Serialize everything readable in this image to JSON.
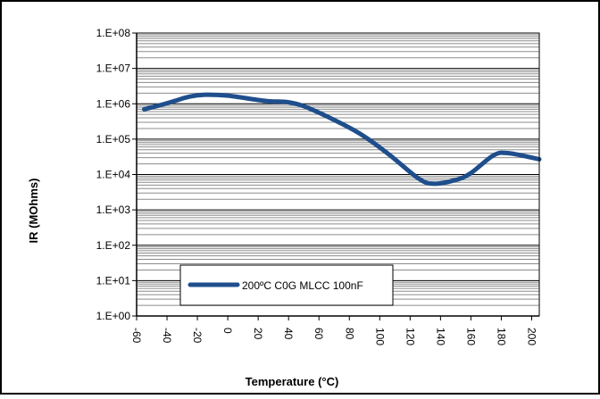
{
  "chart_data": {
    "type": "line",
    "title": "",
    "xlabel": "Temperature (°C)",
    "ylabel": "IR (MOhms)",
    "y_scale": "log",
    "xlim": [
      -60,
      205
    ],
    "ylim": [
      1,
      100000000
    ],
    "grid": true,
    "legend_position": "lower-left",
    "x_ticks": [
      -60,
      -40,
      -20,
      0,
      20,
      40,
      60,
      80,
      100,
      120,
      140,
      160,
      180,
      200
    ],
    "x_tick_labels": [
      "-60",
      "-40",
      "-20",
      "0",
      "20",
      "40",
      "60",
      "80",
      "100",
      "120",
      "140",
      "160",
      "180",
      "200"
    ],
    "y_ticks": [
      1,
      10,
      100,
      1000,
      10000,
      100000,
      1000000,
      10000000,
      100000000
    ],
    "y_tick_labels": [
      "1.E+00",
      "1.E+01",
      "1.E+02",
      "1.E+03",
      "1.E+04",
      "1.E+05",
      "1.E+06",
      "1.E+07",
      "1.E+08"
    ],
    "series": [
      {
        "name": "200ºC C0G MLCC 100nF",
        "color": "#1f4e8c",
        "x": [
          -55,
          -45,
          -35,
          -25,
          -15,
          0,
          25,
          40,
          55,
          85,
          105,
          125,
          135,
          150,
          160,
          175,
          185,
          205
        ],
        "y": [
          700000,
          900000,
          1200000,
          1600000,
          1800000,
          1700000,
          1200000,
          1100000,
          700000,
          160000,
          40000,
          8000,
          5500,
          7000,
          11000,
          35000,
          40000,
          27000
        ]
      }
    ]
  }
}
